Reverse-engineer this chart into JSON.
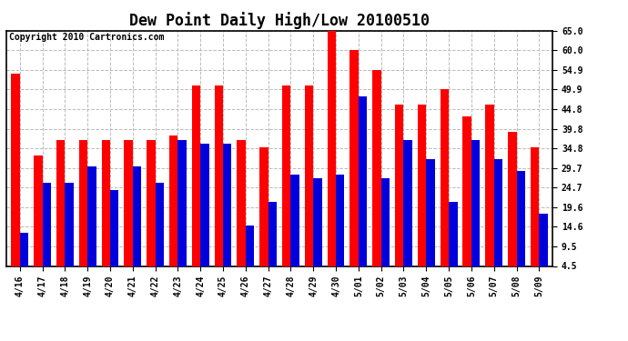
{
  "title": "Dew Point Daily High/Low 20100510",
  "copyright": "Copyright 2010 Cartronics.com",
  "dates": [
    "4/16",
    "4/17",
    "4/18",
    "4/19",
    "4/20",
    "4/21",
    "4/22",
    "4/23",
    "4/24",
    "4/25",
    "4/26",
    "4/27",
    "4/28",
    "4/29",
    "4/30",
    "5/01",
    "5/02",
    "5/03",
    "5/04",
    "5/05",
    "5/06",
    "5/07",
    "5/08",
    "5/09"
  ],
  "highs": [
    54.0,
    33.0,
    37.0,
    37.0,
    37.0,
    37.0,
    37.0,
    38.0,
    51.0,
    51.0,
    37.0,
    35.0,
    51.0,
    51.0,
    65.0,
    60.0,
    55.0,
    46.0,
    46.0,
    50.0,
    43.0,
    46.0,
    39.0,
    35.0
  ],
  "lows": [
    13.0,
    26.0,
    26.0,
    30.0,
    24.0,
    30.0,
    26.0,
    37.0,
    36.0,
    36.0,
    15.0,
    21.0,
    28.0,
    27.0,
    28.0,
    48.0,
    27.0,
    37.0,
    32.0,
    21.0,
    37.0,
    32.0,
    29.0,
    18.0
  ],
  "high_color": "#ff0000",
  "low_color": "#0000dd",
  "bg_color": "#ffffff",
  "grid_color": "#bbbbbb",
  "ylim": [
    4.5,
    65.0
  ],
  "yticks": [
    4.5,
    9.5,
    14.6,
    19.6,
    24.7,
    29.7,
    34.8,
    39.8,
    44.8,
    49.9,
    54.9,
    60.0,
    65.0
  ],
  "title_fontsize": 12,
  "copyright_fontsize": 7,
  "tick_fontsize": 7,
  "bar_width": 0.38
}
